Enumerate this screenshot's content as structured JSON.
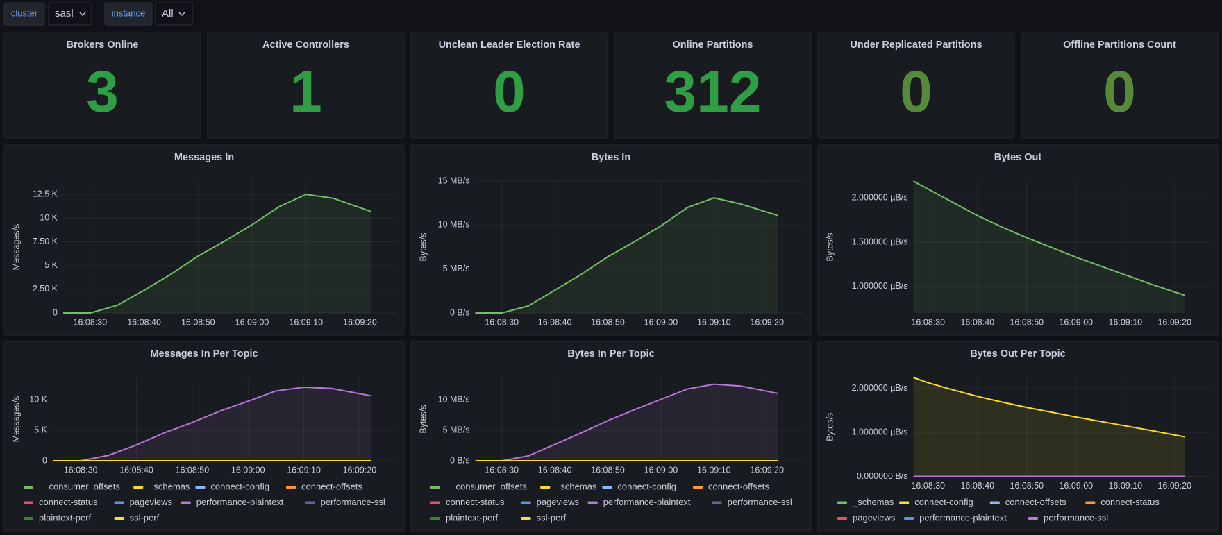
{
  "variables": [
    {
      "label": "cluster",
      "value": "sasl"
    },
    {
      "label": "instance",
      "value": "All"
    }
  ],
  "stats": [
    {
      "title": "Brokers Online",
      "value": 3,
      "color": "#2f9e44"
    },
    {
      "title": "Active Controllers",
      "value": 1,
      "color": "#2f9e44"
    },
    {
      "title": "Unclean Leader Election Rate",
      "value": 0,
      "color": "#2f9e44"
    },
    {
      "title": "Online Partitions",
      "value": 312,
      "color": "#2f9e44"
    },
    {
      "title": "Under Replicated Partitions",
      "value": 0,
      "color": "#56893a"
    },
    {
      "title": "Offline Partitions Count",
      "value": 0,
      "color": "#56893a"
    }
  ],
  "chart_data": [
    {
      "type": "line",
      "title": "Messages In",
      "ylabel": "Messages/s",
      "x": [
        "16:08:25",
        "16:08:30",
        "16:08:35",
        "16:08:40",
        "16:08:45",
        "16:08:50",
        "16:08:55",
        "16:09:00",
        "16:09:05",
        "16:09:10",
        "16:09:15",
        "16:09:22"
      ],
      "xlim": [
        "16:08:25",
        "16:09:22"
      ],
      "xticks": [
        "16:08:30",
        "16:08:40",
        "16:08:50",
        "16:09:00",
        "16:09:10",
        "16:09:20"
      ],
      "ylim": [
        0,
        13900
      ],
      "yticks": [
        {
          "value": 0,
          "label": "0"
        },
        {
          "value": 2500,
          "label": "2.50 K"
        },
        {
          "value": 5000,
          "label": "5 K"
        },
        {
          "value": 7500,
          "label": "7.50 K"
        },
        {
          "value": 10000,
          "label": "10 K"
        },
        {
          "value": 12500,
          "label": "12.5 K"
        }
      ],
      "series": [
        {
          "color": "#73bf69",
          "values": [
            0,
            0,
            800,
            2400,
            4100,
            6000,
            7600,
            9300,
            11200,
            12500,
            12100,
            10700
          ]
        }
      ]
    },
    {
      "type": "line",
      "title": "Bytes In",
      "ylabel": "Bytes/s",
      "x": [
        "16:08:25",
        "16:08:30",
        "16:08:35",
        "16:08:40",
        "16:08:45",
        "16:08:50",
        "16:08:55",
        "16:09:00",
        "16:09:05",
        "16:09:10",
        "16:09:15",
        "16:09:22"
      ],
      "xlim": [
        "16:08:25",
        "16:09:22"
      ],
      "xticks": [
        "16:08:30",
        "16:08:40",
        "16:08:50",
        "16:09:00",
        "16:09:10",
        "16:09:20"
      ],
      "ylim": [
        0,
        15
      ],
      "yticks": [
        {
          "value": 0,
          "label": "0 B/s"
        },
        {
          "value": 5,
          "label": "5 MB/s"
        },
        {
          "value": 10,
          "label": "10 MB/s"
        },
        {
          "value": 15,
          "label": "15 MB/s"
        }
      ],
      "series": [
        {
          "color": "#73bf69",
          "values": [
            0,
            0,
            0.8,
            2.6,
            4.4,
            6.4,
            8.1,
            9.9,
            12.0,
            13.1,
            12.4,
            11.1
          ]
        }
      ]
    },
    {
      "type": "line",
      "title": "Bytes Out",
      "ylabel": "Bytes/s",
      "x": [
        "16:08:27",
        "16:08:30",
        "16:08:35",
        "16:08:40",
        "16:08:45",
        "16:08:50",
        "16:08:55",
        "16:09:00",
        "16:09:05",
        "16:09:10",
        "16:09:15",
        "16:09:22"
      ],
      "xlim": [
        "16:08:27",
        "16:09:22"
      ],
      "xticks": [
        "16:08:30",
        "16:08:40",
        "16:08:50",
        "16:09:00",
        "16:09:10",
        "16:09:20"
      ],
      "ylim": [
        0.7,
        2.19
      ],
      "yticks": [
        {
          "value": 1,
          "label": "1.000000 µB/s"
        },
        {
          "value": 1.5,
          "label": "1.500000 µB/s"
        },
        {
          "value": 2,
          "label": "2.000000 µB/s"
        }
      ],
      "series": [
        {
          "color": "#73bf69",
          "values": [
            2.19,
            2.1,
            1.95,
            1.8,
            1.67,
            1.55,
            1.44,
            1.33,
            1.23,
            1.13,
            1.03,
            0.9
          ]
        }
      ]
    },
    {
      "type": "line",
      "title": "Messages In Per Topic",
      "ylabel": "Messages/s",
      "x": [
        "16:08:25",
        "16:08:30",
        "16:08:35",
        "16:08:40",
        "16:08:45",
        "16:08:50",
        "16:08:55",
        "16:09:00",
        "16:09:05",
        "16:09:10",
        "16:09:15",
        "16:09:22"
      ],
      "xlim": [
        "16:08:25",
        "16:09:22"
      ],
      "xticks": [
        "16:08:30",
        "16:08:40",
        "16:08:50",
        "16:09:00",
        "16:09:10",
        "16:09:20"
      ],
      "ylim": [
        0,
        13700
      ],
      "yticks": [
        {
          "value": 0,
          "label": "0"
        },
        {
          "value": 5000,
          "label": "5 K"
        },
        {
          "value": 10000,
          "label": "10 K"
        }
      ],
      "series": [
        {
          "name": "__consumer_offsets",
          "color": "#73bf69",
          "values": [
            0,
            0,
            0,
            0,
            0,
            0,
            0,
            0,
            0,
            0,
            0,
            0
          ]
        },
        {
          "name": "_schemas",
          "color": "#fade2a",
          "values": [
            0,
            0,
            0,
            0,
            0,
            0,
            0,
            0,
            0,
            0,
            0,
            0
          ]
        },
        {
          "name": "connect-config",
          "color": "#8ab8ff",
          "values": [
            0,
            0,
            0,
            0,
            0,
            0,
            0,
            0,
            0,
            0,
            0,
            0
          ]
        },
        {
          "name": "connect-offsets",
          "color": "#ff9830",
          "values": [
            0,
            0,
            0,
            0,
            0,
            0,
            0,
            0,
            0,
            0,
            0,
            0
          ]
        },
        {
          "name": "connect-status",
          "color": "#f2495c",
          "values": [
            0,
            0,
            0,
            0,
            0,
            0,
            0,
            0,
            0,
            0,
            0,
            0
          ]
        },
        {
          "name": "pageviews",
          "color": "#5794f2",
          "values": [
            0,
            0,
            0,
            0,
            0,
            0,
            0,
            0,
            0,
            0,
            0,
            0
          ]
        },
        {
          "name": "performance-plaintext",
          "color": "#b877d9",
          "values": [
            0,
            0,
            900,
            2600,
            4600,
            6300,
            8200,
            9800,
            11500,
            12100,
            11900,
            10700
          ]
        },
        {
          "name": "performance-ssl",
          "color": "#705da0",
          "values": [
            0,
            0,
            0,
            0,
            0,
            0,
            0,
            0,
            0,
            0,
            0,
            0
          ]
        },
        {
          "name": "plaintext-perf",
          "color": "#37872d",
          "values": [
            0,
            0,
            0,
            0,
            0,
            0,
            0,
            0,
            0,
            0,
            0,
            0
          ]
        },
        {
          "name": "ssl-perf",
          "color": "#fade2a",
          "values": [
            0,
            0,
            0,
            0,
            0,
            0,
            0,
            0,
            0,
            0,
            0,
            0
          ]
        }
      ]
    },
    {
      "type": "line",
      "title": "Bytes In Per Topic",
      "ylabel": "Bytes/s",
      "x": [
        "16:08:25",
        "16:08:30",
        "16:08:35",
        "16:08:40",
        "16:08:45",
        "16:08:50",
        "16:08:55",
        "16:09:00",
        "16:09:05",
        "16:09:10",
        "16:09:15",
        "16:09:22"
      ],
      "xlim": [
        "16:08:25",
        "16:09:22"
      ],
      "xticks": [
        "16:08:30",
        "16:08:40",
        "16:08:50",
        "16:09:00",
        "16:09:10",
        "16:09:20"
      ],
      "ylim": [
        0,
        13.7
      ],
      "yticks": [
        {
          "value": 0,
          "label": "0 B/s"
        },
        {
          "value": 5,
          "label": "5 MB/s"
        },
        {
          "value": 10,
          "label": "10 MB/s"
        }
      ],
      "series": [
        {
          "name": "__consumer_offsets",
          "color": "#73bf69",
          "values": [
            0,
            0,
            0,
            0,
            0,
            0,
            0,
            0,
            0,
            0,
            0,
            0
          ]
        },
        {
          "name": "_schemas",
          "color": "#fade2a",
          "values": [
            0,
            0,
            0,
            0,
            0,
            0,
            0,
            0,
            0,
            0,
            0,
            0
          ]
        },
        {
          "name": "connect-config",
          "color": "#8ab8ff",
          "values": [
            0,
            0,
            0,
            0,
            0,
            0,
            0,
            0,
            0,
            0,
            0,
            0
          ]
        },
        {
          "name": "connect-offsets",
          "color": "#ff9830",
          "values": [
            0,
            0,
            0,
            0,
            0,
            0,
            0,
            0,
            0,
            0,
            0,
            0
          ]
        },
        {
          "name": "connect-status",
          "color": "#f2495c",
          "values": [
            0,
            0,
            0,
            0,
            0,
            0,
            0,
            0,
            0,
            0,
            0,
            0
          ]
        },
        {
          "name": "pageviews",
          "color": "#5794f2",
          "values": [
            0,
            0,
            0,
            0,
            0,
            0,
            0,
            0,
            0,
            0,
            0,
            0
          ]
        },
        {
          "name": "performance-plaintext",
          "color": "#b877d9",
          "values": [
            0,
            0,
            0.8,
            2.7,
            4.6,
            6.6,
            8.4,
            10.1,
            11.8,
            12.6,
            12.3,
            11.1
          ]
        },
        {
          "name": "performance-ssl",
          "color": "#705da0",
          "values": [
            0,
            0,
            0,
            0,
            0,
            0,
            0,
            0,
            0,
            0,
            0,
            0
          ]
        },
        {
          "name": "plaintext-perf",
          "color": "#37872d",
          "values": [
            0,
            0,
            0,
            0,
            0,
            0,
            0,
            0,
            0,
            0,
            0,
            0
          ]
        },
        {
          "name": "ssl-perf",
          "color": "#fade2a",
          "values": [
            0,
            0,
            0,
            0,
            0,
            0,
            0,
            0,
            0,
            0,
            0,
            0
          ]
        }
      ]
    },
    {
      "type": "line",
      "title": "Bytes Out Per Topic",
      "ylabel": "Bytes/s",
      "x": [
        "16:08:27",
        "16:08:30",
        "16:08:35",
        "16:08:40",
        "16:08:45",
        "16:08:50",
        "16:08:55",
        "16:09:00",
        "16:09:05",
        "16:09:10",
        "16:09:15",
        "16:09:22"
      ],
      "xlim": [
        "16:08:27",
        "16:09:22"
      ],
      "xticks": [
        "16:08:30",
        "16:08:40",
        "16:08:50",
        "16:09:00",
        "16:09:10",
        "16:09:20"
      ],
      "ylim": [
        0,
        2.25
      ],
      "yticks": [
        {
          "value": 0,
          "label": "0.000000 B/s"
        },
        {
          "value": 1,
          "label": "1.000000 µB/s"
        },
        {
          "value": 2,
          "label": "2.000000 µB/s"
        }
      ],
      "series": [
        {
          "name": "_schemas",
          "color": "#73bf69",
          "values": [
            0,
            0,
            0,
            0,
            0,
            0,
            0,
            0,
            0,
            0,
            0,
            0
          ]
        },
        {
          "name": "connect-config",
          "color": "#fade2a",
          "values": [
            2.25,
            2.13,
            1.97,
            1.82,
            1.69,
            1.57,
            1.46,
            1.35,
            1.25,
            1.15,
            1.05,
            0.9
          ]
        },
        {
          "name": "connect-offsets",
          "color": "#8ab8ff",
          "values": [
            0,
            0,
            0,
            0,
            0,
            0,
            0,
            0,
            0,
            0,
            0,
            0
          ]
        },
        {
          "name": "connect-status",
          "color": "#ff9830",
          "values": [
            0,
            0,
            0,
            0,
            0,
            0,
            0,
            0,
            0,
            0,
            0,
            0
          ]
        },
        {
          "name": "pageviews",
          "color": "#f2495c",
          "values": [
            0,
            0,
            0,
            0,
            0,
            0,
            0,
            0,
            0,
            0,
            0,
            0
          ]
        },
        {
          "name": "performance-plaintext",
          "color": "#5794f2",
          "values": [
            0,
            0,
            0,
            0,
            0,
            0,
            0,
            0,
            0,
            0,
            0,
            0
          ]
        },
        {
          "name": "performance-ssl",
          "color": "#b877d9",
          "values": [
            0,
            0,
            0,
            0,
            0,
            0,
            0,
            0,
            0,
            0,
            0,
            0
          ]
        }
      ]
    }
  ]
}
